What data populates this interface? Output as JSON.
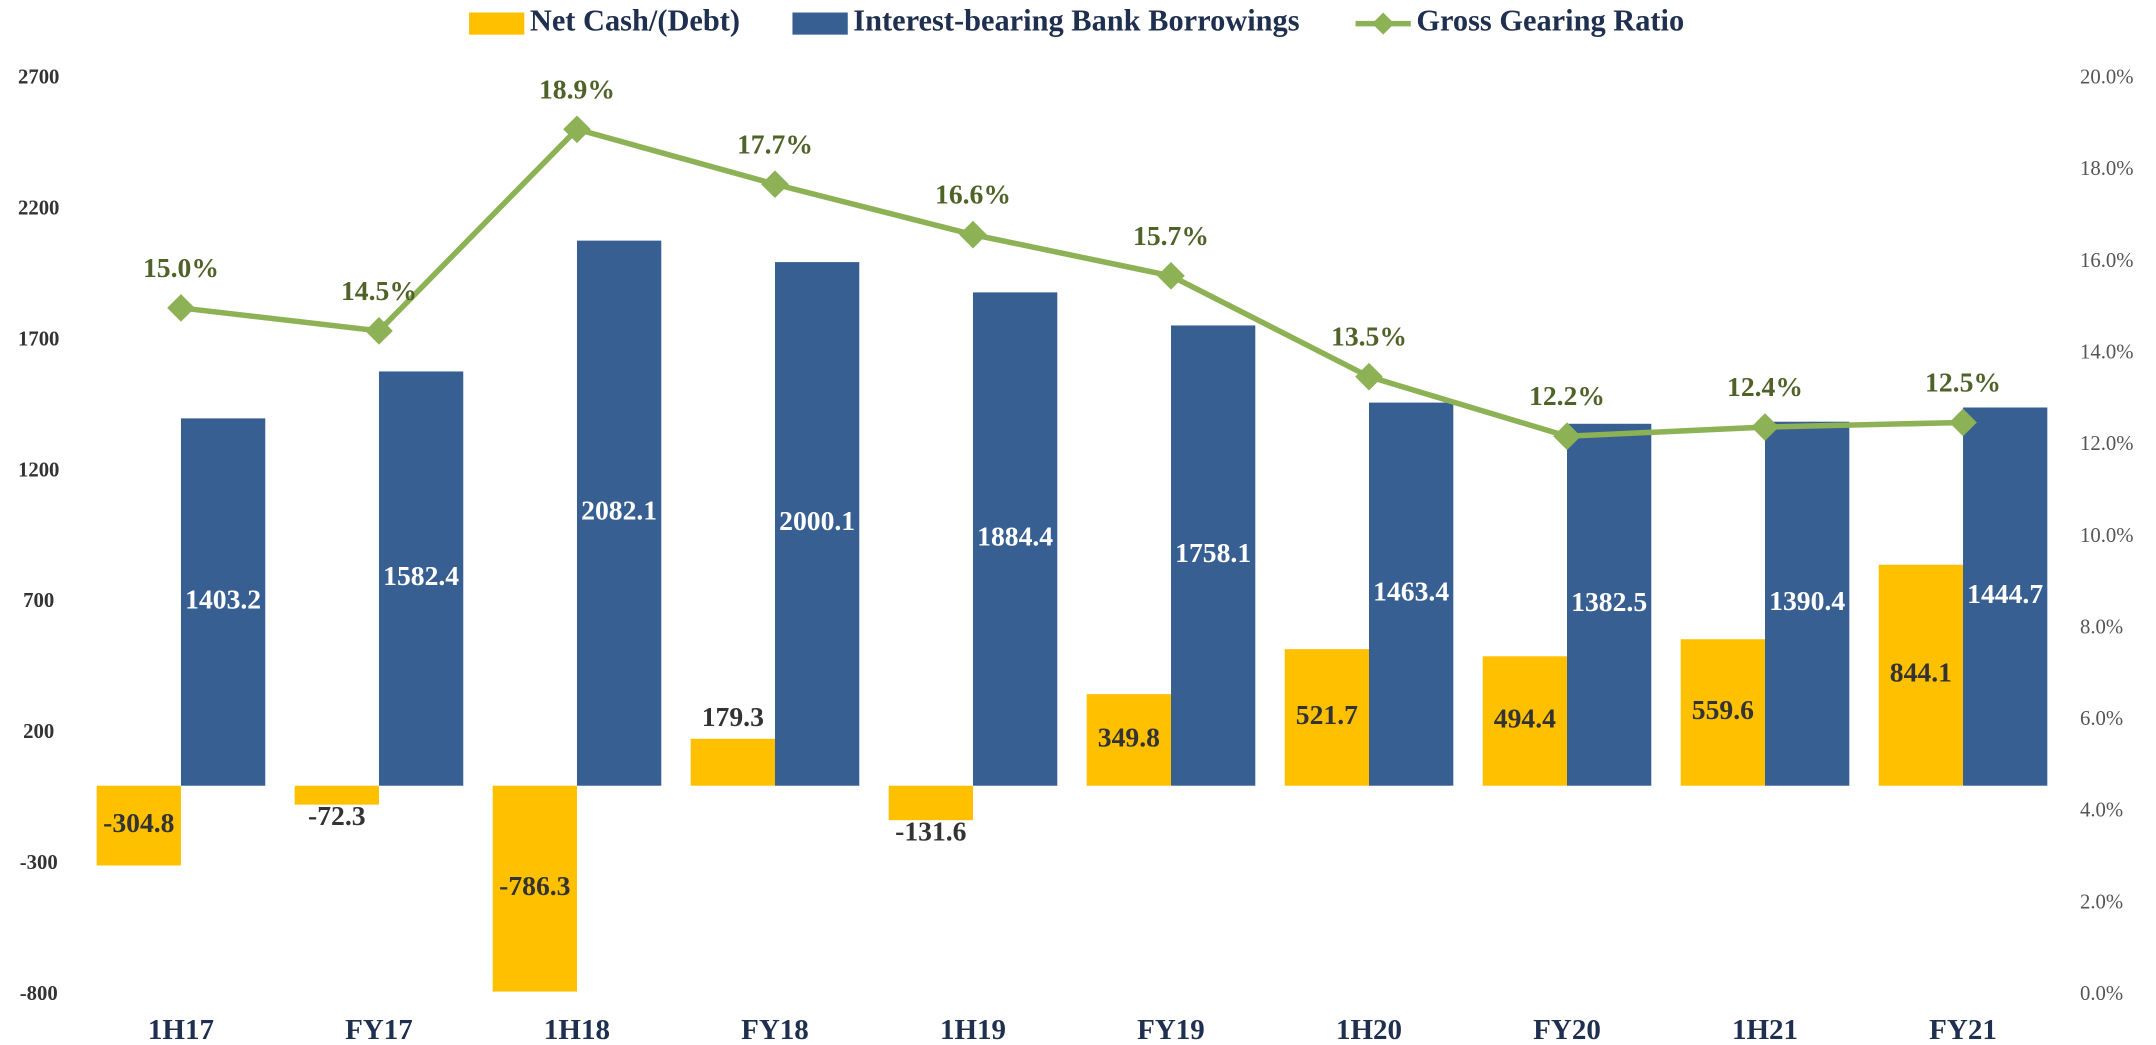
{
  "chart_data": {
    "type": "bar",
    "categories": [
      "1H17",
      "FY17",
      "1H18",
      "FY18",
      "1H19",
      "FY19",
      "1H20",
      "FY20",
      "1H21",
      "FY21"
    ],
    "series": [
      {
        "name": "Net Cash/(Debt)",
        "color": "#FFC000",
        "values": [
          -304.8,
          -72.3,
          -786.3,
          179.3,
          -131.6,
          349.8,
          521.7,
          494.4,
          559.6,
          844.1
        ]
      },
      {
        "name": "Interest-bearing Bank Borrowings",
        "color": "#375F91",
        "values": [
          1403.2,
          1582.4,
          2082.1,
          2000.1,
          1884.4,
          1758.1,
          1463.4,
          1382.5,
          1390.4,
          1444.7
        ]
      },
      {
        "name": "Gross Gearing Ratio",
        "type": "line",
        "axis": "y2",
        "color": "#8DB255",
        "label_color": "#4F6228",
        "values": [
          15.0,
          14.5,
          18.9,
          17.7,
          16.6,
          15.7,
          13.5,
          12.2,
          12.4,
          12.5
        ],
        "value_labels": [
          "15.0%",
          "14.5%",
          "18.9%",
          "17.7%",
          "16.6%",
          "15.7%",
          "13.5%",
          "12.2%",
          "12.4%",
          "12.5%"
        ]
      }
    ],
    "ylim": [
      -800,
      2700
    ],
    "yticks": [
      -800,
      -300,
      200,
      700,
      1200,
      1700,
      2200,
      2700
    ],
    "y2lim": [
      0,
      20
    ],
    "y2ticks": [
      {
        "value": 0,
        "label": "0.0%"
      },
      {
        "value": 2,
        "label": "2.0%"
      },
      {
        "value": 4,
        "label": "4.0%"
      },
      {
        "value": 6,
        "label": "6.0%"
      },
      {
        "value": 8,
        "label": "8.0%"
      },
      {
        "value": 10,
        "label": "10.0%"
      },
      {
        "value": 12,
        "label": "12.0%"
      },
      {
        "value": 14,
        "label": "14.0%"
      },
      {
        "value": 16,
        "label": "16.0%"
      },
      {
        "value": 18,
        "label": "18.0%"
      },
      {
        "value": 20,
        "label": "20.0%"
      }
    ],
    "legend": "top",
    "grid": false
  }
}
